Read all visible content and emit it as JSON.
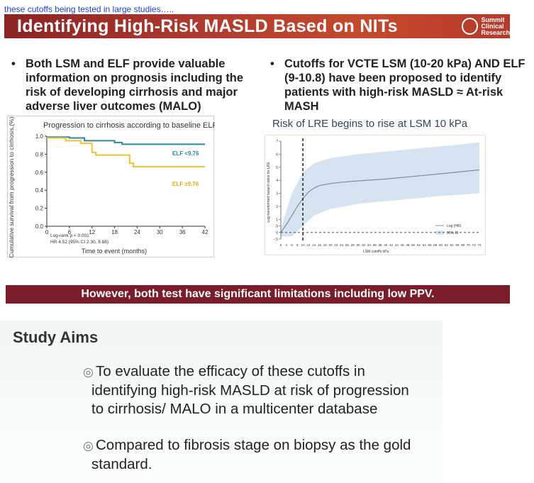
{
  "caption": "these cutoffs being tested in large studies…..",
  "slide": {
    "title": "Identifying High-Risk MASLD Based on NITs",
    "logo_text": "Summit\nClinical\nResearch",
    "bullet_left": "Both LSM and ELF provide valuable information on prognosis including the risk of developing cirrhosis and major adverse liver outcomes (MALO)",
    "bullet_right_lines": [
      "Cutoffs for VCTE LSM (10-20 kPa) AND ELF",
      "(9-10.8) have been proposed to identify",
      "patients with high-risk MASLD ≈ At-risk",
      "MASH"
    ],
    "banner": "However, both test have significant limitations including low PPV."
  },
  "aims": {
    "title": "Study Aims",
    "item1_lines": [
      "To evaluate the efficacy of these cutoffs in",
      "identifying high-risk MASLD at risk of progression",
      "to cirrhosis/ MALO in a multicenter database"
    ],
    "item2_lines": [
      "Compared to fibrosis stage on biopsy as the gold",
      "standard."
    ]
  },
  "chart_data": [
    {
      "type": "line",
      "title": "Progression to cirrhosis according to baseline ELF",
      "xlabel": "Time to event (months)",
      "ylabel": "Cumulative survival from progression to cirrhosis,(%)",
      "xlim": [
        0,
        42
      ],
      "ylim": [
        0,
        1.0
      ],
      "xticks": [
        "0",
        "6",
        "12",
        "18",
        "24",
        "30",
        "36",
        "42"
      ],
      "yticks": [
        "0.0",
        "0.2",
        "0.4",
        "0.6",
        "0.8",
        "1.0"
      ],
      "annotations": [
        "Log-rank p < 0.001",
        "HR 4.52 (95% CI 2.30, 8.88)"
      ],
      "series": [
        {
          "name": "ELF <9.76",
          "color": "#2a8c9a",
          "x": [
            0,
            6,
            6,
            10,
            10,
            18,
            18,
            20,
            20,
            42
          ],
          "y": [
            0.99,
            0.99,
            0.98,
            0.98,
            0.95,
            0.95,
            0.93,
            0.93,
            0.91,
            0.91
          ]
        },
        {
          "name": "ELF ≥9.76",
          "color": "#f1c232",
          "x": [
            0,
            5,
            5,
            9,
            9,
            12,
            12,
            13,
            13,
            22,
            22,
            23,
            23,
            42
          ],
          "y": [
            0.98,
            0.98,
            0.95,
            0.95,
            0.92,
            0.92,
            0.82,
            0.82,
            0.79,
            0.79,
            0.7,
            0.7,
            0.66,
            0.66
          ]
        }
      ]
    },
    {
      "type": "line",
      "title": "Risk of LRE begins to rise at LSM 10 kPa",
      "xlabel": "LSM cutoffs kPa",
      "ylabel": "Log-transformed hazard ratios for LRE",
      "xlim": [
        2,
        74
      ],
      "ylim": [
        -0.5,
        7
      ],
      "xticks": [
        "2",
        "4",
        "6",
        "8",
        "10",
        "12",
        "14",
        "16",
        "18",
        "20",
        "22",
        "24",
        "26",
        "28",
        "30",
        "32",
        "34",
        "36",
        "38",
        "40",
        "42",
        "44",
        "46",
        "48",
        "50",
        "52",
        "54",
        "56",
        "58",
        "60",
        "62",
        "64",
        "66",
        "68",
        "70",
        "72",
        "74"
      ],
      "yticks": [
        "-.5",
        "0",
        ".5",
        "1",
        "2",
        "3",
        "4",
        "5",
        "6",
        "7"
      ],
      "vline_x": 10,
      "legend": [
        "Log (HR)",
        "95% CI"
      ],
      "series": [
        {
          "name": "Log (HR)",
          "x": [
            2,
            4,
            6,
            8,
            10,
            12,
            14,
            16,
            20,
            24,
            30,
            40,
            50,
            60,
            74
          ],
          "y": [
            0,
            0.6,
            1.3,
            2.0,
            2.6,
            3.1,
            3.4,
            3.6,
            3.75,
            3.85,
            3.95,
            4.1,
            4.3,
            4.5,
            4.8
          ]
        },
        {
          "name": "95% CI upper",
          "x": [
            2,
            6,
            10,
            14,
            20,
            30,
            40,
            50,
            60,
            74
          ],
          "y": [
            0.3,
            3.0,
            4.6,
            5.3,
            5.7,
            6.0,
            6.2,
            6.4,
            6.6,
            6.9
          ]
        },
        {
          "name": "95% CI lower",
          "x": [
            2,
            6,
            10,
            14,
            20,
            30,
            40,
            50,
            60,
            74
          ],
          "y": [
            -0.3,
            -0.3,
            0.5,
            1.3,
            1.8,
            2.2,
            2.4,
            2.6,
            2.8,
            3.0
          ]
        }
      ]
    }
  ]
}
